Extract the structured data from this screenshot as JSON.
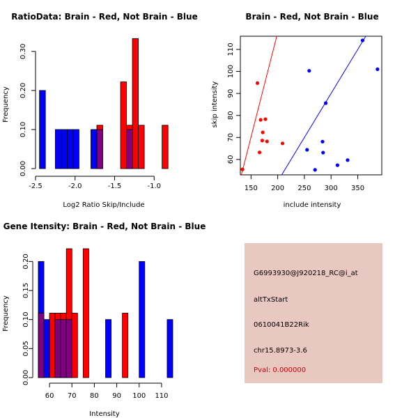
{
  "chart_data": [
    {
      "type": "bar",
      "title": "RatioData: Brain - Red, Not Brain - Blue",
      "xlabel": "Log2 Ratio Skip/Include",
      "ylabel": "Frequency",
      "xlim": [
        -2.5,
        -0.8
      ],
      "ylim": [
        0,
        0.33
      ],
      "xticks": [
        "-2.5",
        "-2.0",
        "-1.5",
        "-1.0"
      ],
      "xtick_values": [
        -2.5,
        -2.0,
        -1.5,
        -1.0
      ],
      "yticks": [
        "0.00",
        "0.10",
        "0.20",
        "0.30"
      ],
      "ytick_values": [
        0,
        0.1,
        0.2,
        0.3
      ],
      "series": [
        {
          "name": "Not Brain",
          "color": "#0000ff",
          "bins": [
            {
              "x0": -2.45,
              "x1": -2.375,
              "y": 0.2
            },
            {
              "x0": -2.25,
              "x1": -2.175,
              "y": 0.1
            },
            {
              "x0": -2.175,
              "x1": -2.1,
              "y": 0.1
            },
            {
              "x0": -2.1,
              "x1": -2.025,
              "y": 0.1
            },
            {
              "x0": -2.025,
              "x1": -1.95,
              "y": 0.1
            },
            {
              "x0": -1.8,
              "x1": -1.725,
              "y": 0.1
            },
            {
              "x0": -1.725,
              "x1": -1.65,
              "y": 0.1
            },
            {
              "x0": -1.35,
              "x1": -1.275,
              "y": 0.1
            }
          ]
        },
        {
          "name": "Brain",
          "color": "#ff0000",
          "bins": [
            {
              "x0": -1.725,
              "x1": -1.65,
              "y": 0.111
            },
            {
              "x0": -1.425,
              "x1": -1.35,
              "y": 0.222
            },
            {
              "x0": -1.35,
              "x1": -1.275,
              "y": 0.111
            },
            {
              "x0": -1.275,
              "x1": -1.2,
              "y": 0.333
            },
            {
              "x0": -1.2,
              "x1": -1.125,
              "y": 0.111
            },
            {
              "x0": -0.9,
              "x1": -0.825,
              "y": 0.111
            }
          ]
        }
      ]
    },
    {
      "type": "scatter",
      "title": "Brain - Red, Not Brain - Blue",
      "xlabel": "include intensity",
      "ylabel": "skip intensity",
      "xlim": [
        130,
        395
      ],
      "ylim": [
        53,
        116
      ],
      "xticks": [
        "150",
        "200",
        "250",
        "300",
        "350"
      ],
      "xtick_values": [
        150,
        200,
        250,
        300,
        350
      ],
      "yticks": [
        "60",
        "70",
        "80",
        "90",
        "100",
        "110"
      ],
      "ytick_values": [
        60,
        70,
        80,
        90,
        100,
        110
      ],
      "series": [
        {
          "name": "Brain",
          "color": "#ff0000",
          "points": [
            [
              134,
              55.5
            ],
            [
              162,
              94.7
            ],
            [
              166,
              63.2
            ],
            [
              168,
              78
            ],
            [
              171,
              68.6
            ],
            [
              172,
              72.3
            ],
            [
              177,
              78.3
            ],
            [
              180,
              68.2
            ],
            [
              209,
              67.3
            ]
          ],
          "fit_line": {
            "slope": 0.95,
            "intercept": -72.3
          }
        },
        {
          "name": "Not Brain",
          "color": "#0000ff",
          "points": [
            [
              255,
              64.4
            ],
            [
              259,
              100.3
            ],
            [
              270,
              55.3
            ],
            [
              284,
              68.1
            ],
            [
              285,
              63.1
            ],
            [
              290,
              85.6
            ],
            [
              312,
              57.4
            ],
            [
              331,
              59.7
            ],
            [
              359,
              114.1
            ],
            [
              387,
              101
            ]
          ],
          "fit_line": {
            "slope": 0.4,
            "intercept": -30
          }
        }
      ]
    },
    {
      "type": "bar",
      "title": "Gene Itensity: Brain - Red, Not Brain - Blue",
      "xlabel": "Intensity",
      "ylabel": "Frequency",
      "xlim": [
        55,
        115
      ],
      "ylim": [
        0,
        0.222
      ],
      "xticks": [
        "60",
        "70",
        "80",
        "90",
        "100",
        "110"
      ],
      "xtick_values": [
        60,
        70,
        80,
        90,
        100,
        110
      ],
      "yticks": [
        "0.00",
        "0.05",
        "0.10",
        "0.15",
        "0.20"
      ],
      "ytick_values": [
        0,
        0.05,
        0.1,
        0.15,
        0.2
      ],
      "series": [
        {
          "name": "Not Brain",
          "color": "#0000ff",
          "bins": [
            {
              "x0": 55,
              "x1": 57.5,
              "y": 0.2
            },
            {
              "x0": 57.5,
              "x1": 60,
              "y": 0.1
            },
            {
              "x0": 62.5,
              "x1": 65,
              "y": 0.1
            },
            {
              "x0": 65,
              "x1": 67.5,
              "y": 0.1
            },
            {
              "x0": 67.5,
              "x1": 70,
              "y": 0.1
            },
            {
              "x0": 85,
              "x1": 87.5,
              "y": 0.1
            },
            {
              "x0": 100,
              "x1": 102.5,
              "y": 0.2
            },
            {
              "x0": 112.5,
              "x1": 115,
              "y": 0.1
            }
          ]
        },
        {
          "name": "Brain",
          "color": "#ff0000",
          "bins": [
            {
              "x0": 55,
              "x1": 57.5,
              "y": 0.111
            },
            {
              "x0": 60,
              "x1": 62.5,
              "y": 0.111
            },
            {
              "x0": 62.5,
              "x1": 65,
              "y": 0.111
            },
            {
              "x0": 65,
              "x1": 67.5,
              "y": 0.111
            },
            {
              "x0": 67.5,
              "x1": 70,
              "y": 0.222
            },
            {
              "x0": 70,
              "x1": 72.5,
              "y": 0.111
            },
            {
              "x0": 75,
              "x1": 77.5,
              "y": 0.222
            },
            {
              "x0": 92.5,
              "x1": 95,
              "y": 0.111
            }
          ]
        }
      ]
    }
  ],
  "info_panel": {
    "probe_id": "G6993930@J920218_RC@i_at",
    "event_type": "altTxStart",
    "gene": "0610041B22Rik",
    "location": "chr15.8973-3.6",
    "pval": "Pval: 0.000000"
  },
  "colors": {
    "overlap": "#800080",
    "info_bg": "#e8c8c0",
    "pval": "#cc0000"
  }
}
